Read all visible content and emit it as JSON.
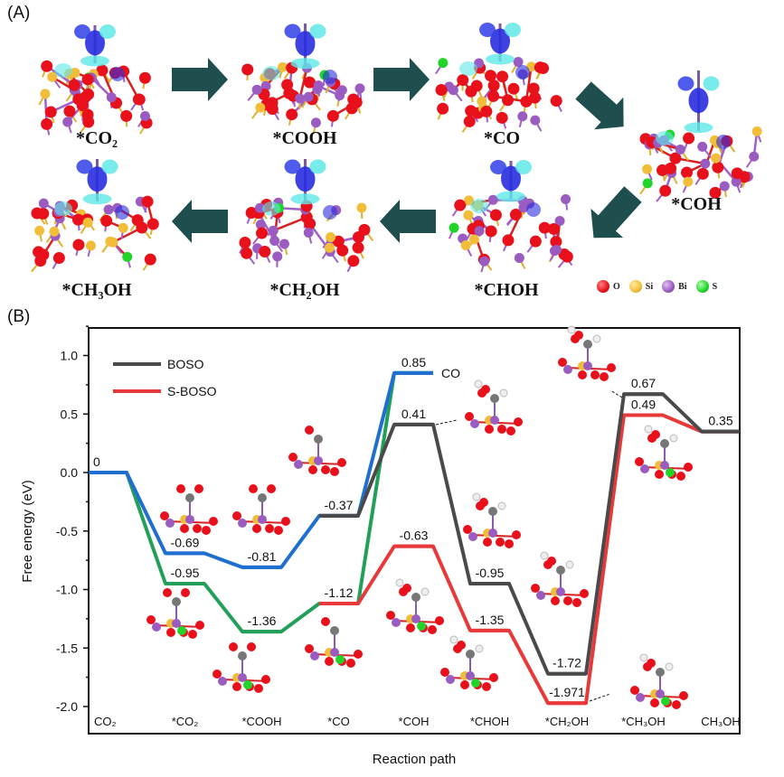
{
  "panel_a": {
    "tag": "(A)",
    "structures": [
      {
        "label": "*CO₂"
      },
      {
        "label": "*COOH"
      },
      {
        "label": "*CO"
      },
      {
        "label": "*COH"
      },
      {
        "label": "*CHOH"
      },
      {
        "label": "*CH₂OH"
      },
      {
        "label": "*CH₃OH"
      }
    ],
    "legend": [
      {
        "label": "O",
        "color": "#e8101a"
      },
      {
        "label": "Si",
        "color": "#f2be3a"
      },
      {
        "label": "Bi",
        "color": "#9a5cc0"
      },
      {
        "label": "S",
        "color": "#22d42a"
      }
    ],
    "arrow_color": "#1f4e4e"
  },
  "panel_b": {
    "tag": "(B)"
  },
  "chart_data": {
    "type": "line",
    "subtype": "free-energy step diagram",
    "xlabel": "Reaction path",
    "ylabel": "Free energy (eV)",
    "ylim": [
      -2.2,
      1.25
    ],
    "yticks": [
      "1.0",
      "0.5",
      "0.0",
      "-0.5",
      "-1.0",
      "-1.5",
      "-2.0"
    ],
    "ytick_values": [
      1.0,
      0.5,
      0.0,
      -0.5,
      -1.0,
      -1.5,
      -2.0
    ],
    "categories": [
      "CO₂",
      "*CO₂",
      "*COOH",
      "*CO",
      "*COH",
      "*CHOH",
      "*CH₂OH",
      "*CH₃OH",
      "CH₃OH"
    ],
    "grid": false,
    "legend_position": "top-left",
    "legend": [
      {
        "label": "BOSO",
        "color": "#4a4a4a"
      },
      {
        "label": "S-BOSO",
        "color": "#e8393a"
      }
    ],
    "series": [
      {
        "color": "#1e6fd0",
        "values": [
          0,
          -0.69,
          -0.81,
          -0.37,
          0.85,
          null,
          null,
          null,
          null
        ]
      },
      {
        "color": "#22a05a",
        "values": [
          0,
          -0.95,
          -1.36,
          -1.12,
          0.85,
          null,
          null,
          null,
          null
        ]
      },
      {
        "name": "BOSO",
        "color": "#4a4a4a",
        "values": [
          null,
          null,
          null,
          -0.37,
          0.41,
          -0.95,
          -1.72,
          0.67,
          0.35
        ]
      },
      {
        "name": "S-BOSO",
        "color": "#e8393a",
        "values": [
          null,
          null,
          null,
          -1.12,
          -0.63,
          -1.35,
          -1.971,
          0.49,
          0.35
        ]
      }
    ],
    "co_label": "CO",
    "data_labels": [
      {
        "category": 0,
        "value": 0,
        "text": "0"
      },
      {
        "category": 1,
        "value": -0.69,
        "text": "-0.69"
      },
      {
        "category": 1,
        "value": -0.95,
        "text": "-0.95"
      },
      {
        "category": 2,
        "value": -0.81,
        "text": "-0.81"
      },
      {
        "category": 2,
        "value": -1.36,
        "text": "-1.36"
      },
      {
        "category": 3,
        "value": -0.37,
        "text": "-0.37"
      },
      {
        "category": 3,
        "value": -1.12,
        "text": "-1.12"
      },
      {
        "category": 4,
        "value": 0.85,
        "text": "0.85"
      },
      {
        "category": 4,
        "value": 0.41,
        "text": "0.41"
      },
      {
        "category": 4,
        "value": -0.63,
        "text": "-0.63"
      },
      {
        "category": 5,
        "value": -0.95,
        "text": "-0.95"
      },
      {
        "category": 5,
        "value": -1.35,
        "text": "-1.35"
      },
      {
        "category": 6,
        "value": -1.72,
        "text": "-1.72"
      },
      {
        "category": 6,
        "value": -1.971,
        "text": "-1.971"
      },
      {
        "category": 7,
        "value": 0.67,
        "text": "0.67"
      },
      {
        "category": 7,
        "value": 0.49,
        "text": "0.49"
      },
      {
        "category": 8,
        "value": 0.35,
        "text": "0.35"
      }
    ]
  }
}
